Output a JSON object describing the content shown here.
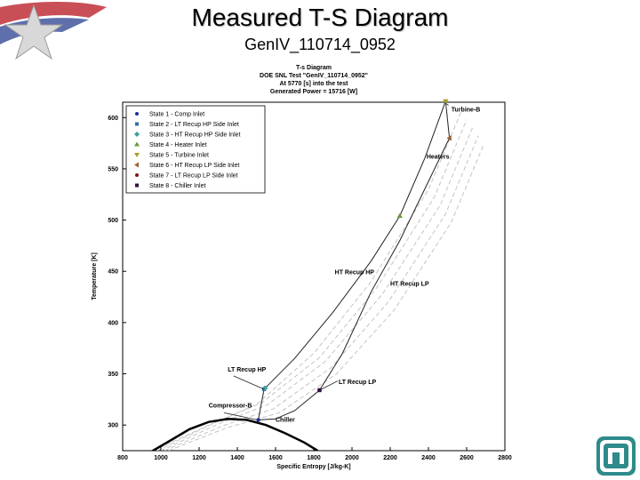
{
  "slide": {
    "title": "Measured T-S Diagram",
    "subtitle": "GenIV_110714_0952"
  },
  "icons": {
    "corner_logo": "star-logo-icon",
    "bottom_right_logo": "sandia-logo-icon"
  },
  "chart_data": {
    "type": "line",
    "title_lines": [
      "T-s Diagram",
      "DOE SNL Test \"GenIV_110714_0952\"",
      "At 5770 [s] into the test",
      "Generated Power = 15716 [W]"
    ],
    "xlabel": "Specific Entropy [J/kg-K]",
    "ylabel": "Temperature [K]",
    "xlim": [
      800,
      2800
    ],
    "ylim": [
      275,
      615
    ],
    "xticks": [
      800,
      1000,
      1200,
      1400,
      1600,
      1800,
      2000,
      2200,
      2400,
      2600,
      2800
    ],
    "yticks": [
      300,
      350,
      400,
      450,
      500,
      550,
      600
    ],
    "legend_position": "top-left",
    "states": [
      {
        "name": "State 1 - Comp Inlet",
        "s": 1510,
        "T": 305,
        "color": "#1a2fa0",
        "marker": "circle"
      },
      {
        "name": "State 2 - LT Recup HP Side Inlet",
        "s": 1540,
        "T": 335,
        "color": "#2f6fb0",
        "marker": "square"
      },
      {
        "name": "State 3 - HT Recup HP Side Inlet",
        "s": 1545,
        "T": 336,
        "color": "#3aa0a0",
        "marker": "diamond"
      },
      {
        "name": "State 4 - Heater Inlet",
        "s": 2250,
        "T": 504,
        "color": "#6a9a3a",
        "marker": "triangle-up"
      },
      {
        "name": "State 5 - Turbine Inlet",
        "s": 2490,
        "T": 616,
        "color": "#a8a020",
        "marker": "triangle-down"
      },
      {
        "name": "State 6 - HT Recup LP Side Inlet",
        "s": 2510,
        "T": 580,
        "color": "#a06030",
        "marker": "triangle-left"
      },
      {
        "name": "State 7 - LT Recup LP Side Inlet",
        "s": 1830,
        "T": 334,
        "color": "#8a1010",
        "marker": "circle"
      },
      {
        "name": "State 8 - Chiller Inlet",
        "s": 1830,
        "T": 334,
        "color": "#301040",
        "marker": "square"
      }
    ],
    "cycle_paths": [
      {
        "points": [
          [
            1510,
            305
          ],
          [
            1540,
            335
          ]
        ]
      },
      {
        "points": [
          [
            1540,
            335
          ],
          [
            1700,
            365
          ],
          [
            1900,
            410
          ],
          [
            2100,
            460
          ],
          [
            2250,
            504
          ],
          [
            2380,
            560
          ],
          [
            2490,
            616
          ]
        ]
      },
      {
        "points": [
          [
            2490,
            616
          ],
          [
            2510,
            580
          ]
        ]
      },
      {
        "points": [
          [
            2510,
            580
          ],
          [
            2380,
            530
          ],
          [
            2250,
            480
          ],
          [
            2100,
            430
          ],
          [
            1950,
            370
          ],
          [
            1830,
            334
          ]
        ]
      },
      {
        "points": [
          [
            1830,
            334
          ],
          [
            1700,
            314
          ],
          [
            1600,
            306
          ],
          [
            1510,
            305
          ]
        ]
      }
    ],
    "saturation_dome": [
      [
        940,
        273
      ],
      [
        1050,
        285
      ],
      [
        1150,
        296
      ],
      [
        1250,
        303
      ],
      [
        1350,
        306
      ],
      [
        1450,
        305
      ],
      [
        1550,
        300
      ],
      [
        1650,
        292
      ],
      [
        1750,
        283
      ],
      [
        1820,
        275
      ]
    ],
    "isobars": [
      [
        [
          960,
          275
        ],
        [
          1250,
          300
        ],
        [
          1500,
          320
        ],
        [
          1800,
          370
        ],
        [
          2100,
          440
        ],
        [
          2400,
          530
        ],
        [
          2570,
          605
        ]
      ],
      [
        [
          980,
          275
        ],
        [
          1280,
          302
        ],
        [
          1530,
          322
        ],
        [
          1830,
          366
        ],
        [
          2130,
          434
        ],
        [
          2430,
          522
        ],
        [
          2600,
          598
        ]
      ],
      [
        [
          1000,
          275
        ],
        [
          1300,
          301
        ],
        [
          1560,
          320
        ],
        [
          1860,
          362
        ],
        [
          2160,
          428
        ],
        [
          2460,
          514
        ],
        [
          2630,
          590
        ]
      ],
      [
        [
          1020,
          275
        ],
        [
          1320,
          299
        ],
        [
          1590,
          316
        ],
        [
          1890,
          356
        ],
        [
          2190,
          420
        ],
        [
          2490,
          506
        ],
        [
          2660,
          582
        ]
      ],
      [
        [
          1040,
          275
        ],
        [
          1340,
          297
        ],
        [
          1620,
          312
        ],
        [
          1920,
          350
        ],
        [
          2220,
          412
        ],
        [
          2520,
          498
        ],
        [
          2690,
          574
        ]
      ]
    ],
    "annotations": [
      {
        "text": "Turbine-B",
        "s": 2520,
        "T": 606
      },
      {
        "text": "Heaters",
        "s": 2390,
        "T": 560
      },
      {
        "text": "HT Recup HP",
        "s": 1910,
        "T": 447
      },
      {
        "text": "HT Recup LP",
        "s": 2200,
        "T": 436
      },
      {
        "text": "LT Recup HP",
        "s": 1350,
        "T": 352
      },
      {
        "text": "LT Recup LP",
        "s": 1930,
        "T": 340
      },
      {
        "text": "Compressor-B",
        "s": 1250,
        "T": 317
      },
      {
        "text": "Chiller",
        "s": 1600,
        "T": 303
      }
    ]
  }
}
